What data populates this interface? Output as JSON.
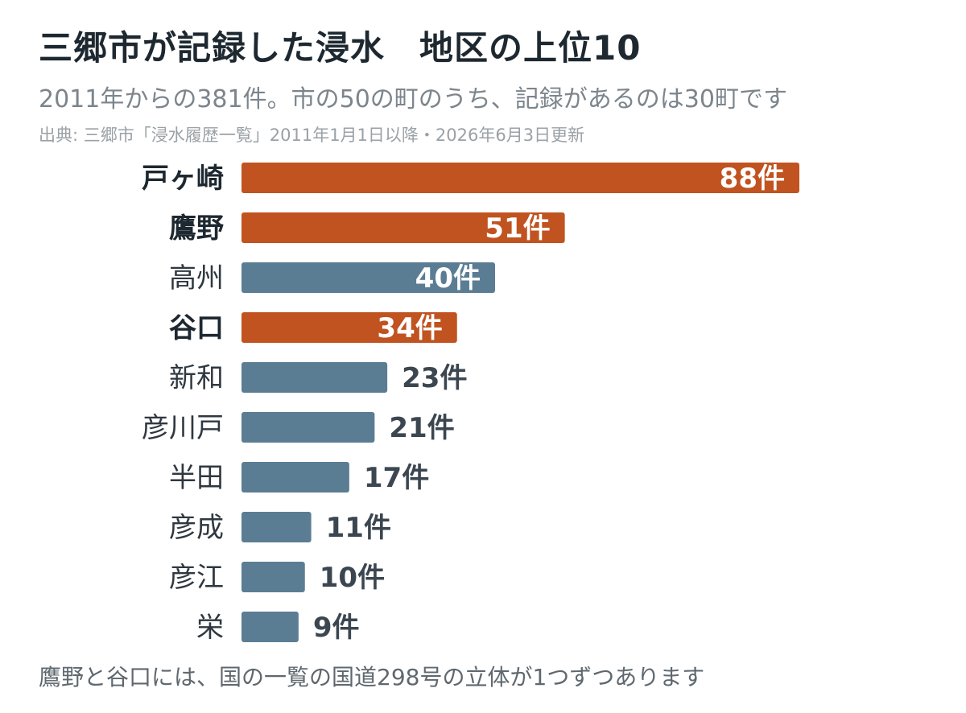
{
  "title": "三郷市が記録した浸水　地区の上位10",
  "subtitle": "2011年からの381件。市の50の町のうち、記録があるのは30町です",
  "source": "出典: 三郷市「浸水履歴一覧」2011年1月1日以降・2026年6月3日更新",
  "footnote": "鷹野と谷口には、国の一覧の国道298号の立体が1つずつあります",
  "colors": {
    "highlight": "#c0531f",
    "normal": "#5b7d94",
    "label_inside": "#ffffff",
    "label_outside": "#3b4650"
  },
  "chart_data": {
    "type": "bar",
    "orientation": "horizontal",
    "categories": [
      "戸ヶ崎",
      "鷹野",
      "高州",
      "谷口",
      "新和",
      "彦川戸",
      "半田",
      "彦成",
      "彦江",
      "栄"
    ],
    "values": [
      88,
      51,
      40,
      34,
      23,
      21,
      17,
      11,
      10,
      9
    ],
    "value_labels": [
      "88件",
      "51件",
      "40件",
      "34件",
      "23件",
      "21件",
      "17件",
      "11件",
      "10件",
      "9件"
    ],
    "highlighted": [
      true,
      true,
      false,
      true,
      false,
      false,
      false,
      false,
      false,
      false
    ],
    "xlim": [
      0,
      88
    ],
    "grid": false,
    "legend": "none"
  }
}
